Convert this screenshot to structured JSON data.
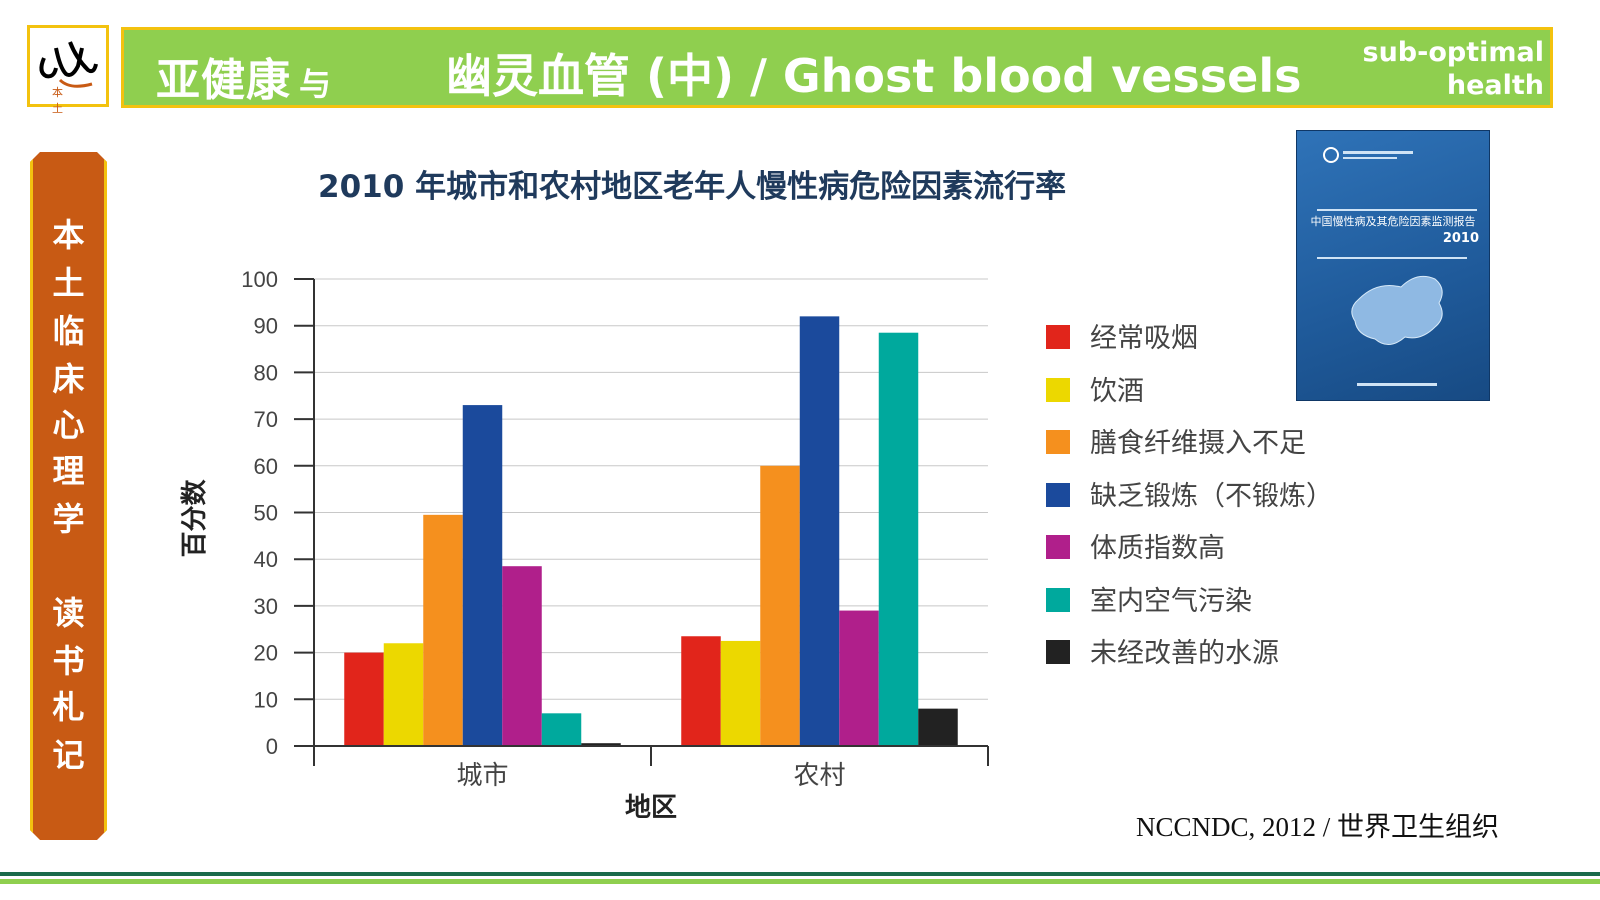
{
  "header": {
    "left_title": "亚健康",
    "left_connector": "与",
    "main_title": "幽灵血管 (中) / Ghost blood vessels",
    "right_title_line1": "sub-optimal",
    "right_title_line2": "health"
  },
  "logo": {
    "glyph": "心",
    "caption": "本 土"
  },
  "side_tab": {
    "chars": [
      "本",
      "土",
      "临",
      "床",
      "心",
      "理",
      "学",
      "",
      "读",
      "书",
      "札",
      "记"
    ]
  },
  "book_cover": {
    "title": "中国慢性病及其危险因素监测报告",
    "year": "2010"
  },
  "source": "NCCNDC, 2012 / 世界卫生组织",
  "colors": {
    "banner_green": "#8fcf4f",
    "border_yellow": "#f3c20f",
    "side_orange": "#c85a14",
    "title_navy": "#1f3a5c"
  },
  "chart_data": {
    "type": "bar",
    "title": "2010 年城市和农村地区老年人慢性病危险因素流行率",
    "xlabel": "地区",
    "ylabel": "百分数",
    "ylim": [
      0,
      100
    ],
    "yticks": [
      0,
      10,
      20,
      30,
      40,
      50,
      60,
      70,
      80,
      90,
      100
    ],
    "categories": [
      "城市",
      "农村"
    ],
    "grid": true,
    "legend_position": "right",
    "series": [
      {
        "name": "经常吸烟",
        "color": "#e1251b",
        "values": [
          20,
          23.5
        ]
      },
      {
        "name": "饮酒",
        "color": "#ecd800",
        "values": [
          22,
          22.5
        ]
      },
      {
        "name": "膳食纤维摄入不足",
        "color": "#f5901e",
        "values": [
          49.5,
          60
        ]
      },
      {
        "name": "缺乏锻炼（不锻炼）",
        "color": "#1b4a9c",
        "values": [
          73,
          92
        ]
      },
      {
        "name": "体质指数高",
        "color": "#b01f8b",
        "values": [
          38.5,
          29
        ]
      },
      {
        "name": "室内空气污染",
        "color": "#00a99d",
        "values": [
          7,
          88.5
        ]
      },
      {
        "name": "未经改善的水源",
        "color": "#222222",
        "values": [
          0.6,
          8
        ]
      }
    ]
  }
}
